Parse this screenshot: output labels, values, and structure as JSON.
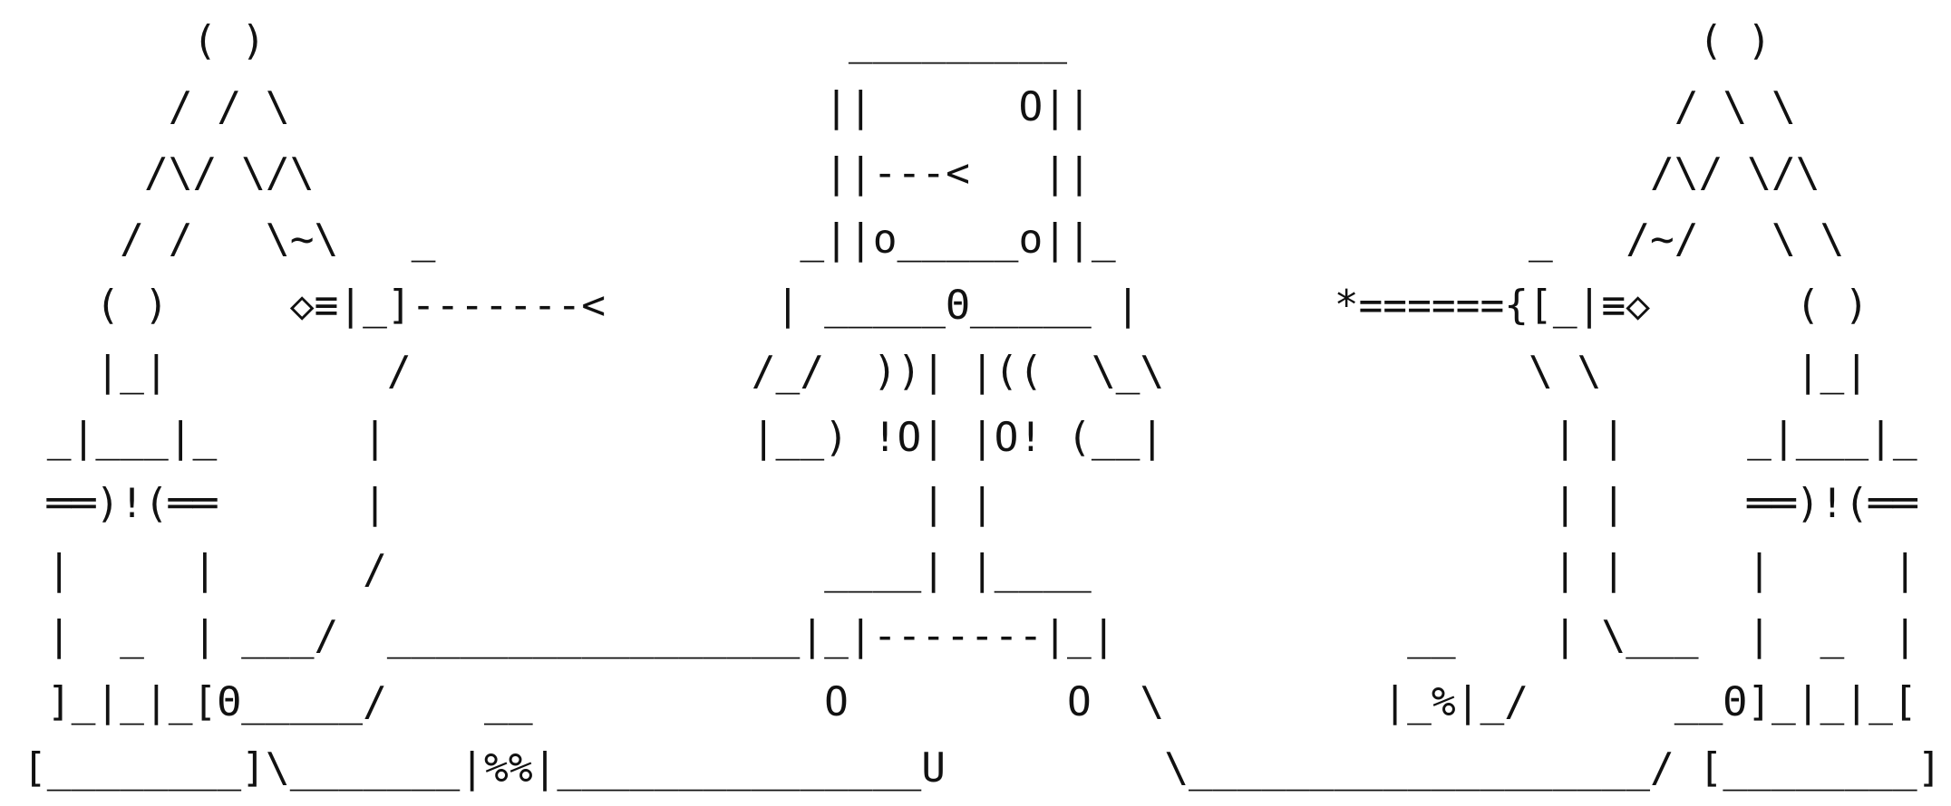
{
  "lines": [
    "       ( )                        _________                          ( )",
    "      / / \\                      ||      O||                        / \\ \\",
    "     /\\/ \\/\\                     ||---<   ||                       /\\/ \\/\\",
    "    / /   \\~\\   _               _||o_____o||_                 _   /~/   \\ \\",
    "   ( )     ◇≡|_]-------<       | _____Θ_____ |        *======{[_|≡◇      ( )",
    "   |_|         /              /_/  ))| |((  \\_\\               \\ \\        |_|",
    " _|___|_      |               |__) !O| |O! (__|                | |     _|___|_",
    " ══)!(══      |                      | |                       | |     ══)!(══",
    " |     |      /                  ____| |____                   | |     |     |",
    " |  _  | ___/  _________________|_|-------|_|            __    | \\___  |  _  |",
    " ]_|_|_[Θ_____/    __            O         O  \\         |_%|_/      __Θ]_|_|_[",
    "[________]\\_______|%%|_______________U         \\___________________/ [________]"
  ]
}
